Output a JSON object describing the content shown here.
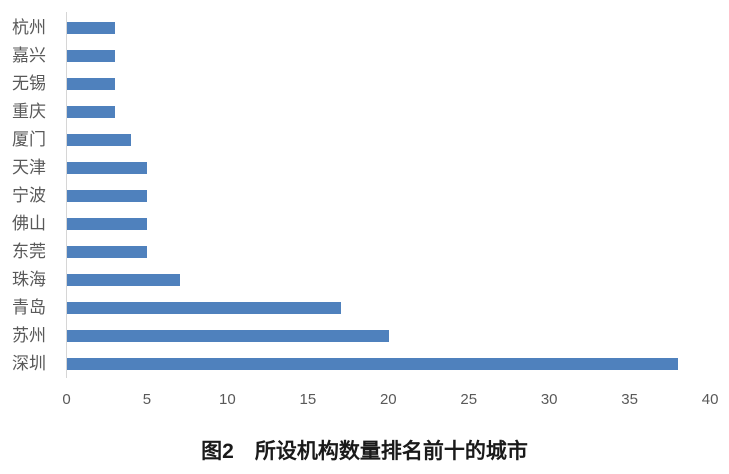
{
  "figure": {
    "caption": "图2　所设机构数量排名前十的城市"
  },
  "chart_data": {
    "type": "bar",
    "orientation": "horizontal",
    "title": "图2　所设机构数量排名前十的城市",
    "categories": [
      "杭州",
      "嘉兴",
      "无锡",
      "重庆",
      "厦门",
      "天津",
      "宁波",
      "佛山",
      "东莞",
      "珠海",
      "青岛",
      "苏州",
      "深圳"
    ],
    "values": [
      3,
      3,
      3,
      3,
      4,
      5,
      5,
      5,
      5,
      7,
      17,
      20,
      38
    ],
    "xlabel": "",
    "ylabel": "",
    "xlim": [
      0,
      40
    ],
    "xticks": [
      0,
      5,
      10,
      15,
      20,
      25,
      30,
      35,
      40
    ],
    "grid": false,
    "legend": false,
    "category_order": "top-to-bottom",
    "bar_color": "#4F81BD",
    "axis_line_color": "#D6D6D6",
    "category_label_color": "#595959",
    "tick_label_color": "#595959",
    "title_color": "#1A1A1A",
    "background_color": "#FFFFFF"
  }
}
